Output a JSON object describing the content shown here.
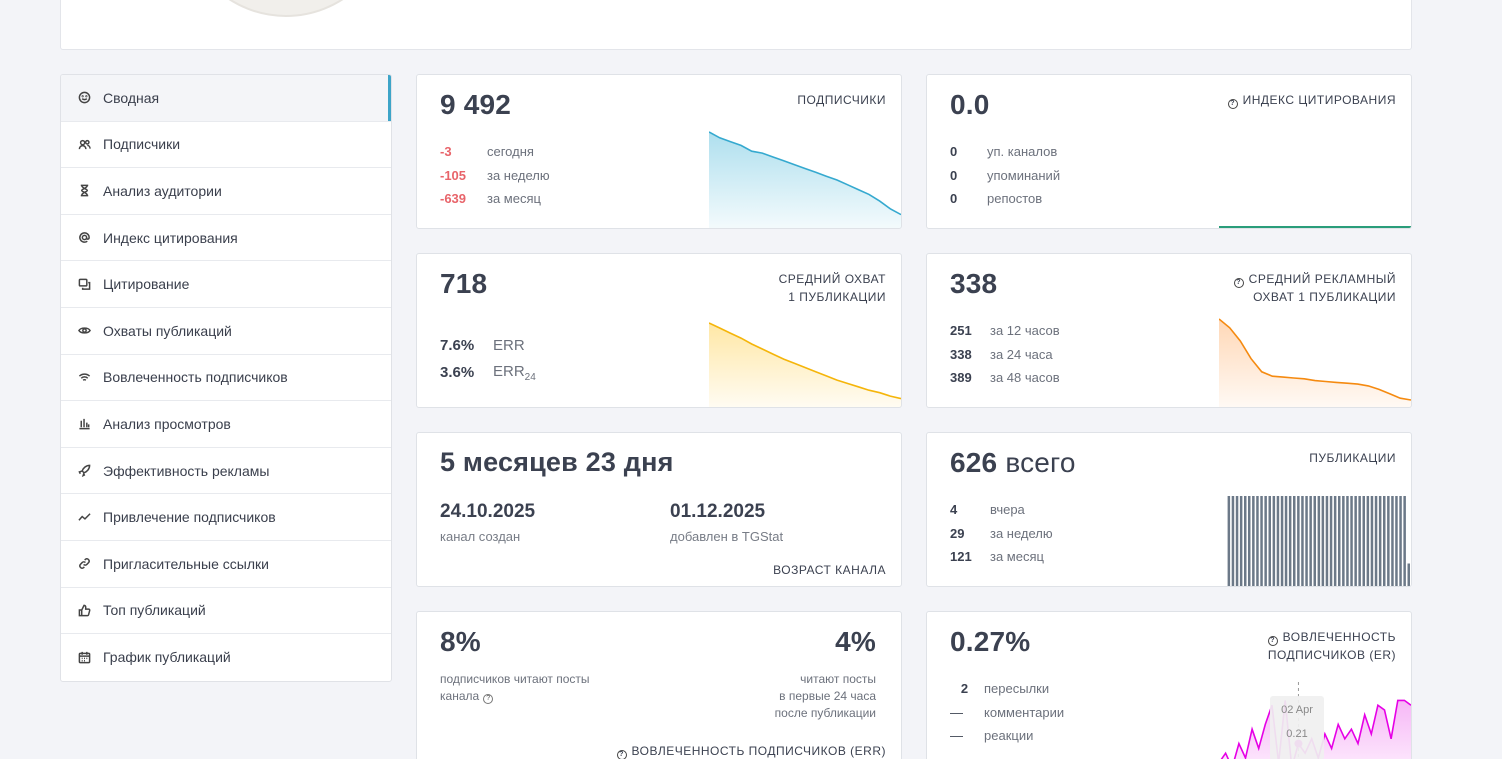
{
  "sidebar": {
    "items": [
      {
        "label": "Сводная",
        "icon": "smile-icon",
        "active": true
      },
      {
        "label": "Подписчики",
        "icon": "users-icon"
      },
      {
        "label": "Анализ аудитории",
        "icon": "hourglass-icon"
      },
      {
        "label": "Индекс цитирования",
        "icon": "at-icon"
      },
      {
        "label": "Цитирование",
        "icon": "quote-icon"
      },
      {
        "label": "Охваты публикаций",
        "icon": "eye-icon"
      },
      {
        "label": "Вовлеченность подписчиков",
        "icon": "wifi-icon"
      },
      {
        "label": "Анализ просмотров",
        "icon": "bar-chart-icon"
      },
      {
        "label": "Эффективность рекламы",
        "icon": "rocket-icon"
      },
      {
        "label": "Привлечение подписчиков",
        "icon": "trend-icon"
      },
      {
        "label": "Пригласительные ссылки",
        "icon": "link-icon"
      },
      {
        "label": "Топ публикаций",
        "icon": "thumbs-up-icon"
      },
      {
        "label": "График публикаций",
        "icon": "calendar-icon"
      }
    ]
  },
  "subscribers": {
    "value": "9 492",
    "caption": "ПОДПИСЧИКИ",
    "rows": [
      {
        "value": "-3",
        "label": "сегодня"
      },
      {
        "value": "-105",
        "label": "за неделю"
      },
      {
        "value": "-639",
        "label": "за месяц"
      }
    ]
  },
  "citation": {
    "value": "0.0",
    "caption": "ИНДЕКС ЦИТИРОВАНИЯ",
    "rows": [
      {
        "value": "0",
        "label": "уп. каналов"
      },
      {
        "value": "0",
        "label": "упоминаний"
      },
      {
        "value": "0",
        "label": "репостов"
      }
    ]
  },
  "reach": {
    "value": "718",
    "caption_line1": "СРЕДНИЙ ОХВАТ",
    "caption_line2": "1 ПУБЛИКАЦИИ",
    "err_value": "7.6%",
    "err_label": "ERR",
    "err24_value": "3.6%",
    "err24_label": "ERR",
    "err24_sub": "24"
  },
  "ad_reach": {
    "value": "338",
    "caption_line1": "СРЕДНИЙ РЕКЛАМНЫЙ",
    "caption_line2": "ОХВАТ 1 ПУБЛИКАЦИИ",
    "rows": [
      {
        "value": "251",
        "label": "за 12 часов"
      },
      {
        "value": "338",
        "label": "за 24 часа"
      },
      {
        "value": "389",
        "label": "за 48 часов"
      }
    ]
  },
  "age": {
    "value": "5 месяцев 23 дня",
    "created_date": "24.10.2025",
    "created_label": "канал создан",
    "added_date": "01.12.2025",
    "added_label": "добавлен в TGStat",
    "caption": "ВОЗРАСТ КАНАЛА"
  },
  "posts": {
    "value": "626",
    "value_suffix": "всего",
    "caption": "ПУБЛИКАЦИИ",
    "rows": [
      {
        "value": "4",
        "label": "вчера"
      },
      {
        "value": "29",
        "label": "за неделю"
      },
      {
        "value": "121",
        "label": "за месяц"
      }
    ]
  },
  "err_card": {
    "left_value": "8%",
    "left_label_line1": "подписчиков читают посты",
    "left_label_line2": "канала",
    "right_value": "4%",
    "right_label_line1": "читают посты",
    "right_label_line2": "в первые 24 часа",
    "right_label_line3": "после публикации",
    "caption": "ВОВЛЕЧЕННОСТЬ ПОДПИСЧИКОВ (ERR)"
  },
  "er_card": {
    "value": "0.27%",
    "caption_line1": "ВОВЛЕЧЕННОСТЬ",
    "caption_line2": "ПОДПИСЧИКОВ (ER)",
    "rows": [
      {
        "value": "2",
        "label": "пересылки"
      },
      {
        "value": "—",
        "label": "комментарии"
      },
      {
        "value": "—",
        "label": "реакции"
      }
    ],
    "tooltip_date": "02 Apr",
    "tooltip_value": "0.21"
  },
  "colors": {
    "accent": "#3da4c8",
    "negative": "#e8646a",
    "subscribers_line": "#35a9cf",
    "reach_line": "#f5b50a",
    "ad_reach_line": "#f58a10",
    "posts_bars": "#6c7988",
    "er_line": "#e600e6",
    "citation_line": "#2a9d7a"
  },
  "chart_data": [
    {
      "type": "area",
      "name": "subscribers",
      "values": [
        100,
        94,
        90,
        86,
        80,
        78,
        74,
        70,
        66,
        62,
        58,
        54,
        50,
        45,
        40,
        35,
        28,
        20,
        14
      ]
    },
    {
      "type": "area",
      "name": "reach",
      "values": [
        100,
        94,
        88,
        82,
        75,
        69,
        63,
        57,
        52,
        47,
        42,
        37,
        32,
        28,
        24,
        20,
        17,
        13,
        10
      ]
    },
    {
      "type": "area",
      "name": "ad_reach",
      "values": [
        100,
        90,
        75,
        55,
        40,
        35,
        34,
        33,
        32,
        30,
        29,
        28,
        27,
        26,
        24,
        20,
        15,
        10,
        8
      ]
    },
    {
      "type": "bar",
      "name": "posts",
      "values": [
        100,
        100,
        100,
        100,
        100,
        100,
        100,
        100,
        100,
        100,
        100,
        100,
        100,
        100,
        100,
        100,
        100,
        100,
        100,
        100,
        100,
        100,
        100,
        100,
        100,
        100,
        100,
        100,
        100,
        100,
        100,
        100,
        100,
        100,
        100,
        100,
        100,
        100,
        100,
        100,
        100,
        100,
        100,
        100,
        25
      ]
    },
    {
      "type": "area",
      "name": "er",
      "values": [
        20,
        30,
        15,
        40,
        25,
        55,
        35,
        60,
        80,
        20,
        85,
        15,
        40,
        30,
        45,
        25,
        50,
        35,
        60,
        45,
        55,
        40,
        70,
        50,
        80,
        75,
        45,
        85,
        85,
        80
      ]
    }
  ]
}
